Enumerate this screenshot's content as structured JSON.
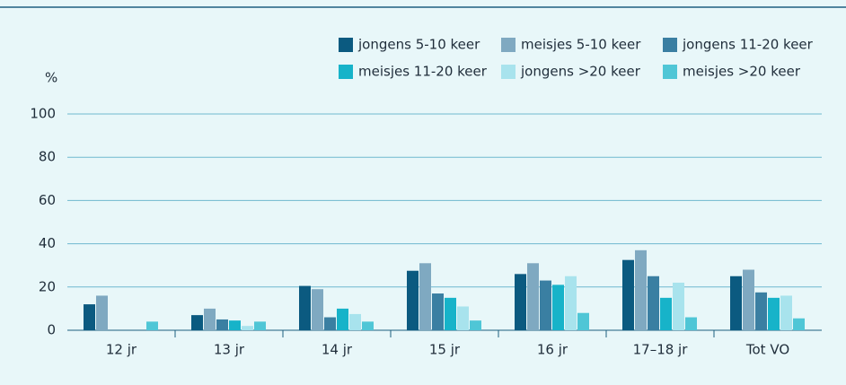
{
  "chart_data": {
    "type": "bar",
    "y_label": "%",
    "categories": [
      "12 jr",
      "13 jr",
      "14 jr",
      "15 jr",
      "16 jr",
      "17–18 jr",
      "Tot VO"
    ],
    "series": [
      {
        "name": "jongens 5-10 keer",
        "color": "#0b5a80",
        "values": [
          12,
          7,
          20.5,
          27.5,
          26,
          32.5,
          25
        ]
      },
      {
        "name": "meisjes 5-10 keer",
        "color": "#7fa9c1",
        "values": [
          16,
          10,
          19,
          31,
          31,
          37,
          28
        ]
      },
      {
        "name": "jongens 11-20 keer",
        "color": "#3a7fa2",
        "values": [
          0,
          5,
          6,
          17,
          23,
          25,
          17.5
        ]
      },
      {
        "name": "meisjes 11-20 keer",
        "color": "#17b3c9",
        "values": [
          0,
          4.5,
          10,
          15,
          21,
          15,
          15
        ]
      },
      {
        "name": "jongens >20 keer",
        "color": "#a8e3ed",
        "values": [
          0,
          2,
          7.5,
          11,
          25,
          22,
          16
        ]
      },
      {
        "name": "meisjes >20 keer",
        "color": "#4fc6d6",
        "values": [
          4,
          4,
          4,
          4.5,
          8,
          6,
          5.5
        ]
      }
    ],
    "ylim": [
      0,
      100
    ],
    "yticks": [
      0,
      20,
      40,
      60,
      80,
      100
    ],
    "grid": true
  }
}
